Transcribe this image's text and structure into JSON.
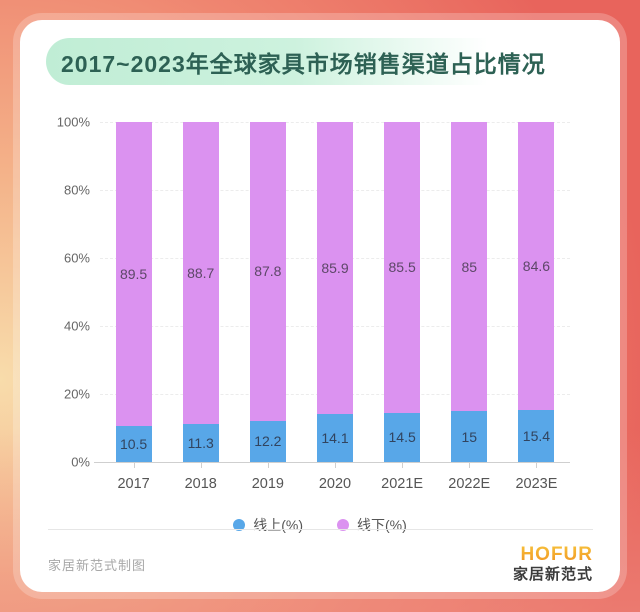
{
  "title": "2017~2023年全球家具市场销售渠道占比情况",
  "chart_data": {
    "type": "bar",
    "stacked": true,
    "title": "2017~2023年全球家具市场销售渠道占比情况",
    "categories": [
      "2017",
      "2018",
      "2019",
      "2020",
      "2021E",
      "2022E",
      "2023E"
    ],
    "series": [
      {
        "name": "线上(%)",
        "color": "#58a7e8",
        "label_color": "#31445f",
        "values": [
          10.5,
          11.3,
          12.2,
          14.1,
          14.5,
          15,
          15.4
        ]
      },
      {
        "name": "线下(%)",
        "color": "#db92f0",
        "label_color": "#5d4768",
        "values": [
          89.5,
          88.7,
          87.8,
          85.9,
          85.5,
          85,
          84.6
        ]
      }
    ],
    "value_labels": {
      "online": [
        "10.5",
        "11.3",
        "12.2",
        "14.1",
        "14.5",
        "15",
        "15.4"
      ],
      "offline": [
        "89.5",
        "88.7",
        "87.8",
        "85.9",
        "85.5",
        "85",
        "84.6"
      ]
    },
    "ylim": [
      0,
      100
    ],
    "yticks": [
      0,
      20,
      40,
      60,
      80,
      100
    ],
    "ytick_suffix": "%",
    "grid": "horizontal-dashed",
    "legend_position": "bottom"
  },
  "legend": [
    {
      "label": "线上(%)",
      "color": "#58a7e8"
    },
    {
      "label": "线下(%)",
      "color": "#db92f0"
    }
  ],
  "footer": {
    "credit": "家居新范式制图",
    "logo_primary": "HOFUR",
    "logo_secondary": "家居新范式"
  },
  "colors": {
    "frame_top": "#e8645c",
    "frame_light": "#f8dcab",
    "frame_bottom": "#ee8c80",
    "card_bg": "#ffffff",
    "title_text": "#2d6154",
    "title_pill_bg": "#c0edd5",
    "online_bar": "#58a7e8",
    "offline_bar": "#db92f0",
    "axis_text": "#666666",
    "gridline": "#ececec"
  }
}
